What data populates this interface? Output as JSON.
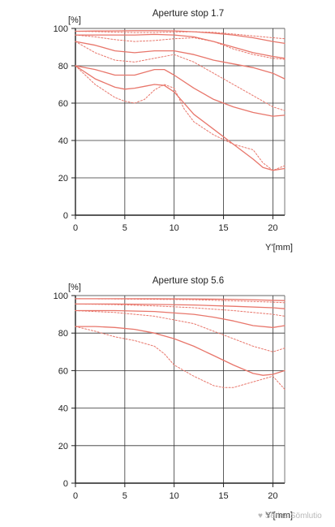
{
  "chart_data": [
    {
      "type": "line",
      "title": "Aperture stop 1.7",
      "ylabel": "[%]",
      "xlabel": "Y'[mm]",
      "xlim": [
        0,
        21.2
      ],
      "ylim": [
        0,
        100
      ],
      "xticks": [
        0,
        5,
        10,
        15,
        20
      ],
      "yticks": [
        0,
        20,
        40,
        60,
        80,
        100
      ],
      "grid": true,
      "line_color": "#e8766b",
      "series": [
        {
          "style": "solid",
          "x": [
            0,
            2,
            4,
            6,
            8,
            10,
            12,
            14,
            16,
            18,
            20,
            21.2
          ],
          "y": [
            98.5,
            98.6,
            98.7,
            98.8,
            98.8,
            98.7,
            98.2,
            97.5,
            96.5,
            95,
            93,
            92
          ]
        },
        {
          "style": "dotted",
          "x": [
            0,
            2,
            4,
            6,
            8,
            10,
            12,
            14,
            16,
            18,
            20,
            21.2
          ],
          "y": [
            98.5,
            98.3,
            98,
            97.8,
            97.8,
            98.1,
            98.2,
            97.9,
            97,
            96,
            95,
            94.5
          ]
        },
        {
          "style": "solid",
          "x": [
            0,
            2,
            4,
            6,
            8,
            10,
            12,
            14,
            16,
            18,
            20,
            21.2
          ],
          "y": [
            96.5,
            96.5,
            96.5,
            96.5,
            96.8,
            96.5,
            95.5,
            93,
            90,
            87,
            85,
            84
          ]
        },
        {
          "style": "dotted",
          "x": [
            0,
            2,
            4,
            6,
            8,
            10,
            12,
            14,
            16,
            18,
            20,
            21.2
          ],
          "y": [
            96.5,
            95.5,
            94,
            93,
            93.5,
            94.5,
            95,
            93,
            89,
            86,
            84,
            83.5
          ]
        },
        {
          "style": "solid",
          "x": [
            0,
            2,
            4,
            6,
            8,
            10,
            12,
            14,
            16,
            18,
            20,
            21.2
          ],
          "y": [
            93,
            91,
            88,
            87,
            88,
            88,
            86,
            83,
            81,
            79,
            76,
            73
          ]
        },
        {
          "style": "dotted",
          "x": [
            0,
            2,
            4,
            6,
            8,
            10,
            12,
            14,
            16,
            18,
            20,
            21.2
          ],
          "y": [
            93,
            87,
            83,
            82,
            84,
            86,
            82,
            76,
            70,
            64,
            58,
            56
          ]
        },
        {
          "style": "solid",
          "x": [
            0,
            2,
            4,
            6,
            8,
            9,
            10,
            12,
            14,
            16,
            18,
            20,
            21.2
          ],
          "y": [
            80,
            78,
            75,
            75,
            78,
            78,
            75,
            68,
            62,
            58,
            55,
            53,
            53.5
          ]
        },
        {
          "style": "solid",
          "x": [
            0,
            2,
            4,
            5,
            6,
            7,
            8,
            9,
            10,
            11,
            12,
            14,
            16,
            18,
            19,
            20,
            21.2
          ],
          "y": [
            80,
            73,
            68.5,
            67.5,
            68,
            69,
            70,
            69.5,
            66,
            60,
            54,
            46,
            38,
            30,
            25.5,
            24,
            25
          ]
        },
        {
          "style": "dotted",
          "x": [
            0,
            2,
            4,
            5,
            6,
            7,
            8,
            9,
            10,
            11,
            12,
            14,
            16,
            18,
            19,
            20,
            21.2
          ],
          "y": [
            80,
            70,
            63,
            61,
            60,
            62,
            67,
            70,
            68,
            57,
            50,
            43,
            38,
            35,
            28,
            24,
            26.5
          ]
        }
      ]
    },
    {
      "type": "line",
      "title": "Aperture stop 5.6",
      "ylabel": "[%]",
      "xlabel": "Y'[mm]",
      "xlim": [
        0,
        21.2
      ],
      "ylim": [
        0,
        100
      ],
      "xticks": [
        0,
        5,
        10,
        15,
        20
      ],
      "yticks": [
        0,
        20,
        40,
        60,
        80,
        100
      ],
      "grid": true,
      "line_color": "#e8766b",
      "series": [
        {
          "style": "solid",
          "x": [
            0,
            4,
            8,
            12,
            16,
            20,
            21.2
          ],
          "y": [
            98.3,
            98.3,
            98.3,
            98.2,
            98,
            97.5,
            97.3
          ]
        },
        {
          "style": "dotted",
          "x": [
            0,
            4,
            8,
            12,
            16,
            20,
            21.2
          ],
          "y": [
            98.3,
            98.2,
            98,
            97.8,
            97.2,
            96.5,
            96.2
          ]
        },
        {
          "style": "solid",
          "x": [
            0,
            4,
            8,
            12,
            16,
            20,
            21.2
          ],
          "y": [
            95.5,
            95.5,
            95.3,
            95,
            94.3,
            93.5,
            93
          ]
        },
        {
          "style": "dotted",
          "x": [
            0,
            4,
            8,
            12,
            16,
            20,
            21.2
          ],
          "y": [
            95.5,
            95.2,
            94.5,
            93.5,
            92,
            90,
            89
          ]
        },
        {
          "style": "solid",
          "x": [
            0,
            4,
            8,
            12,
            14,
            16,
            18,
            20,
            21.2
          ],
          "y": [
            92,
            92,
            91.5,
            90,
            88.5,
            86.5,
            84,
            83,
            84
          ]
        },
        {
          "style": "dotted",
          "x": [
            0,
            4,
            8,
            12,
            14,
            16,
            18,
            20,
            21.2
          ],
          "y": [
            92,
            91,
            89,
            85,
            81,
            77,
            73,
            70,
            72
          ]
        },
        {
          "style": "solid",
          "x": [
            0,
            2,
            4,
            6,
            8,
            10,
            12,
            14,
            16,
            18,
            19,
            20,
            21.2
          ],
          "y": [
            83.5,
            83.5,
            83,
            82,
            80,
            77,
            73,
            68,
            63,
            58.5,
            57.5,
            58,
            60
          ]
        },
        {
          "style": "dotted",
          "x": [
            0,
            2,
            4,
            6,
            8,
            9,
            10,
            11,
            12,
            14,
            15,
            16,
            18,
            20,
            21.2
          ],
          "y": [
            83.5,
            81,
            78,
            76,
            73,
            69,
            63,
            60,
            57,
            52,
            51,
            51,
            54,
            57,
            50
          ]
        }
      ]
    }
  ],
  "watermark": "♥ Séries Sömlutio"
}
